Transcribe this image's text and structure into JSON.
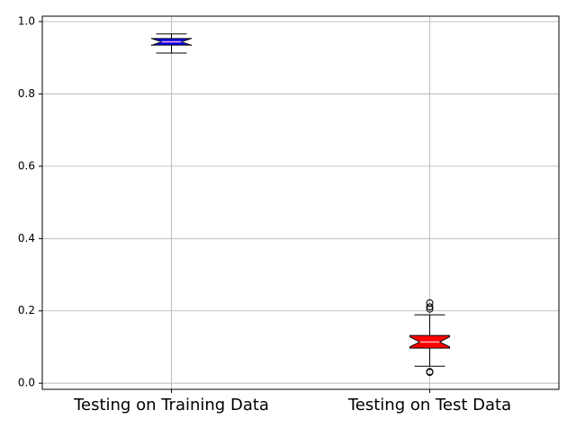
{
  "chart_data": {
    "type": "boxplot",
    "categories": [
      "Testing on Training Data",
      "Testing on Test Data"
    ],
    "series": [
      {
        "color": "#0000ff",
        "whisker_low": 0.913,
        "q1": 0.935,
        "median": 0.944,
        "q3": 0.953,
        "whisker_high": 0.966,
        "outliers": []
      },
      {
        "color": "#ff0000",
        "whisker_low": 0.047,
        "q1": 0.097,
        "median": 0.114,
        "q3": 0.132,
        "whisker_high": 0.189,
        "outliers": [
          0.03,
          0.032,
          0.205,
          0.211,
          0.222
        ]
      }
    ],
    "ylim": [
      -0.017,
      1.015
    ],
    "yticks": [
      {
        "value": 0,
        "label": "0.0"
      },
      0.2,
      0.4,
      0.6,
      0.8,
      {
        "value": 1,
        "label": "1.0"
      }
    ],
    "grid": true,
    "notch": true
  }
}
